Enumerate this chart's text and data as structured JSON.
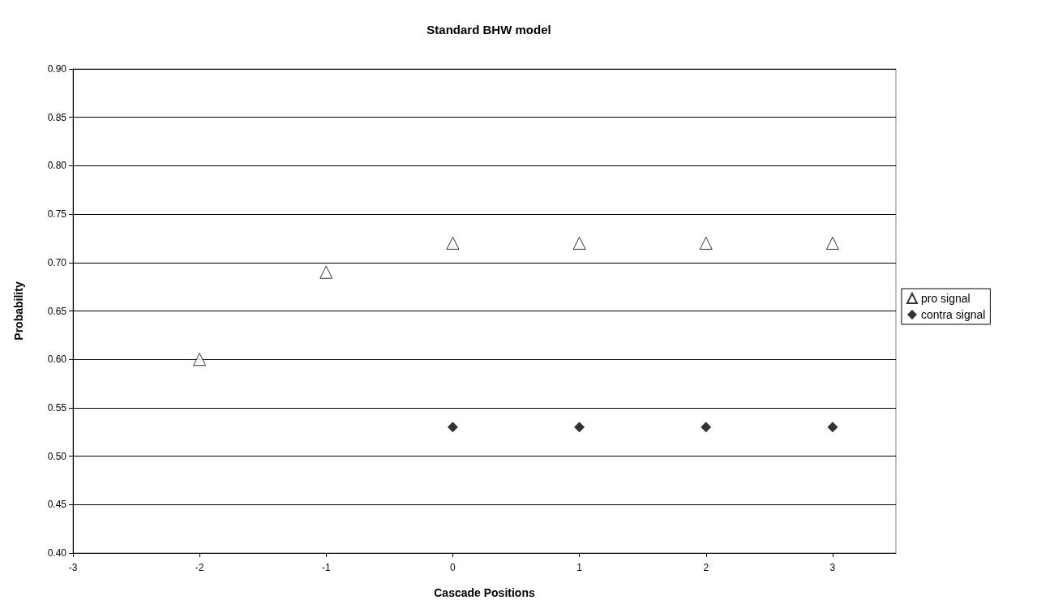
{
  "chart_data": {
    "type": "scatter",
    "title": "Standard BHW model",
    "xlabel": "Cascade Positions",
    "ylabel": "Probability",
    "x": [
      -2,
      -1,
      0,
      1,
      2,
      3
    ],
    "series": [
      {
        "name": "pro signal",
        "color": "#000000",
        "marker": "triangle",
        "values": [
          0.6,
          0.69,
          0.72,
          0.72,
          0.72,
          0.72
        ]
      },
      {
        "name": "contra signal",
        "color": "#000000",
        "marker": "diamond",
        "values": [
          null,
          null,
          0.53,
          0.53,
          0.53,
          0.53
        ]
      }
    ],
    "xlim": [
      -3,
      3.5
    ],
    "xticks": [
      -3,
      -2,
      -1,
      0,
      1,
      2,
      3
    ],
    "ylim": [
      0.4,
      0.9
    ],
    "yticks": [
      {
        "value": 0.4,
        "label": "0.40"
      },
      {
        "value": 0.45,
        "label": "0.45"
      },
      {
        "value": 0.5,
        "label": "0.50"
      },
      {
        "value": 0.55,
        "label": "0.55"
      },
      {
        "value": 0.6,
        "label": "0.60"
      },
      {
        "value": 0.65,
        "label": "0.65"
      },
      {
        "value": 0.7,
        "label": "0.70"
      },
      {
        "value": 0.75,
        "label": "0.75"
      },
      {
        "value": 0.8,
        "label": "0.80"
      },
      {
        "value": 0.85,
        "label": "0.85"
      },
      {
        "value": 0.9,
        "label": "0.90"
      }
    ],
    "grid": "y",
    "legend": "right"
  }
}
